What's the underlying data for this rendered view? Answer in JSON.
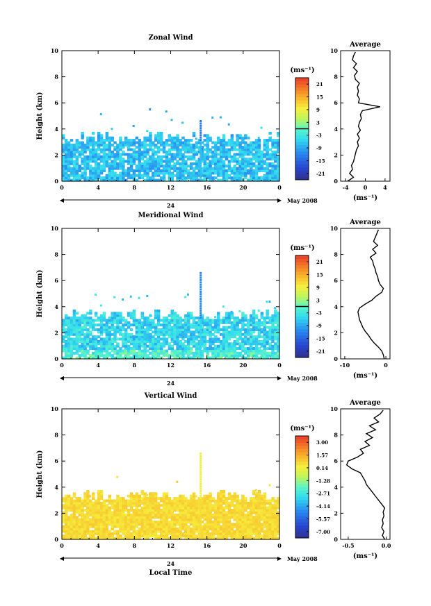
{
  "chart_data": [
    {
      "type": "heatmap",
      "title": "Zonal Wind",
      "ylabel": "Height (km)",
      "xticks": [
        "0",
        "4",
        "8",
        "12",
        "16",
        "20",
        "0"
      ],
      "yticks": [
        "0",
        "2",
        "4",
        "6",
        "8",
        "10"
      ],
      "xlim": [
        0,
        24
      ],
      "ylim": [
        0,
        10
      ],
      "day_label": "24",
      "month_label": "May 2008",
      "colorbar": {
        "unit_label": "(ms⁻¹)",
        "ticks": [
          "21",
          "15",
          "9",
          "3",
          "-3",
          "-9",
          "-15",
          "-21"
        ],
        "range": [
          -24,
          24
        ]
      },
      "field": {
        "base_height": 0.0,
        "top_height": 3.3,
        "mean_value": -7.0,
        "variability": 3.5,
        "scatter_top": 5.5,
        "coverage": 0.82,
        "spike_time": 15.2,
        "spike_top": 4.6
      },
      "average_profile": {
        "title": "Average",
        "xlabel": "(ms⁻¹)",
        "xticks": [
          "-4",
          "0",
          "4"
        ],
        "xlim": [
          -5,
          5
        ],
        "height": [
          0.0,
          0.3,
          0.6,
          0.9,
          1.2,
          1.5,
          1.8,
          2.1,
          2.4,
          2.7,
          3.0,
          3.3,
          3.6,
          3.9,
          4.2,
          4.5,
          4.8,
          5.1,
          5.4,
          5.7,
          6.0,
          6.3,
          6.6,
          6.9,
          7.2,
          7.5,
          7.8,
          8.1,
          8.4,
          8.7,
          9.0,
          9.3,
          9.6,
          9.9
        ],
        "value": [
          -3.6,
          -2.4,
          -3.2,
          -2.6,
          -2.8,
          -2.4,
          -2.2,
          -2.0,
          -1.8,
          -1.4,
          -1.6,
          -1.2,
          -1.6,
          -1.0,
          -1.4,
          -1.2,
          -0.8,
          -1.0,
          -0.6,
          3.0,
          -1.4,
          -1.2,
          -1.6,
          -1.4,
          -1.6,
          -1.2,
          -2.0,
          -2.2,
          -1.6,
          -2.4,
          -1.8,
          -2.6,
          -2.4,
          -2.0
        ]
      }
    },
    {
      "type": "heatmap",
      "title": "Meridional Wind",
      "ylabel": "Height (km)",
      "xticks": [
        "0",
        "4",
        "8",
        "12",
        "16",
        "20",
        "0"
      ],
      "yticks": [
        "0",
        "2",
        "4",
        "6",
        "8",
        "10"
      ],
      "xlim": [
        0,
        24
      ],
      "ylim": [
        0,
        10
      ],
      "day_label": "24",
      "month_label": "May 2008",
      "colorbar": {
        "unit_label": "(ms⁻¹)",
        "ticks": [
          "21",
          "15",
          "9",
          "3",
          "-3",
          "-9",
          "-15",
          "-21"
        ],
        "range": [
          -24,
          24
        ]
      },
      "field": {
        "base_height": 0.0,
        "top_height": 3.3,
        "mean_value": -5.0,
        "variability": 4.0,
        "scatter_top": 5.0,
        "coverage": 0.85,
        "spike_time": 15.2,
        "spike_top": 6.6
      },
      "average_profile": {
        "title": "Average",
        "xlabel": "(ms⁻¹)",
        "xticks": [
          "-10",
          "0"
        ],
        "xlim": [
          -11,
          1
        ],
        "height": [
          0.0,
          0.3,
          0.6,
          0.9,
          1.2,
          1.5,
          1.8,
          2.1,
          2.4,
          2.7,
          3.0,
          3.3,
          3.6,
          3.9,
          4.2,
          4.5,
          4.8,
          5.1,
          5.4,
          5.7,
          6.0,
          6.3,
          6.6,
          6.9,
          7.2,
          7.5,
          7.8,
          8.1,
          8.4,
          8.7,
          9.0,
          9.3,
          9.6,
          9.9
        ],
        "value": [
          -0.4,
          -0.6,
          -1.0,
          -1.8,
          -2.8,
          -3.6,
          -4.2,
          -5.0,
          -5.6,
          -6.0,
          -6.4,
          -6.6,
          -6.8,
          -6.4,
          -5.0,
          -3.4,
          -2.4,
          -1.0,
          -0.6,
          -1.4,
          -1.8,
          -2.0,
          -2.4,
          -2.6,
          -3.0,
          -3.2,
          -3.8,
          -2.4,
          -3.2,
          -2.0,
          -3.0,
          -2.6,
          -2.2,
          -1.8
        ]
      }
    },
    {
      "type": "heatmap",
      "title": "Vertical Wind",
      "ylabel": "Height (km)",
      "xlabel": "Local Time",
      "xticks": [
        "0",
        "4",
        "8",
        "12",
        "16",
        "20",
        "0"
      ],
      "yticks": [
        "0",
        "2",
        "4",
        "6",
        "8",
        "10"
      ],
      "xlim": [
        0,
        24
      ],
      "ylim": [
        0,
        10
      ],
      "day_label": "24",
      "month_label": "May 2008",
      "colorbar": {
        "unit_label": "(ms⁻¹)",
        "ticks": [
          "3.00",
          "1.57",
          "0.14",
          "-1.28",
          "-2.71",
          "-4.14",
          "-5.57",
          "-7.00"
        ],
        "range": [
          -7.7,
          3.7
        ]
      },
      "field": {
        "base_height": 0.0,
        "top_height": 3.3,
        "mean_value": 0.7,
        "variability": 0.35,
        "scatter_top": 5.2,
        "coverage": 0.92,
        "spike_time": 15.2,
        "spike_top": 6.6
      },
      "average_profile": {
        "title": "Average",
        "xlabel": "(ms⁻¹)",
        "xticks": [
          "-0.5",
          "0.0"
        ],
        "xlim": [
          -0.6,
          0.05
        ],
        "height": [
          0.0,
          0.3,
          0.6,
          0.9,
          1.2,
          1.5,
          1.8,
          2.1,
          2.4,
          2.7,
          3.0,
          3.3,
          3.6,
          3.9,
          4.2,
          4.5,
          4.8,
          5.1,
          5.4,
          5.7,
          6.0,
          6.3,
          6.6,
          6.9,
          7.2,
          7.5,
          7.8,
          8.1,
          8.4,
          8.7,
          9.0,
          9.3,
          9.6,
          9.9
        ],
        "value": [
          -0.02,
          -0.05,
          -0.03,
          -0.06,
          -0.04,
          -0.05,
          -0.03,
          -0.04,
          -0.02,
          -0.06,
          -0.1,
          -0.14,
          -0.18,
          -0.22,
          -0.26,
          -0.28,
          -0.31,
          -0.34,
          -0.45,
          -0.52,
          -0.5,
          -0.38,
          -0.3,
          -0.34,
          -0.22,
          -0.28,
          -0.18,
          -0.26,
          -0.14,
          -0.22,
          -0.1,
          -0.16,
          -0.08,
          -0.04
        ]
      }
    }
  ]
}
